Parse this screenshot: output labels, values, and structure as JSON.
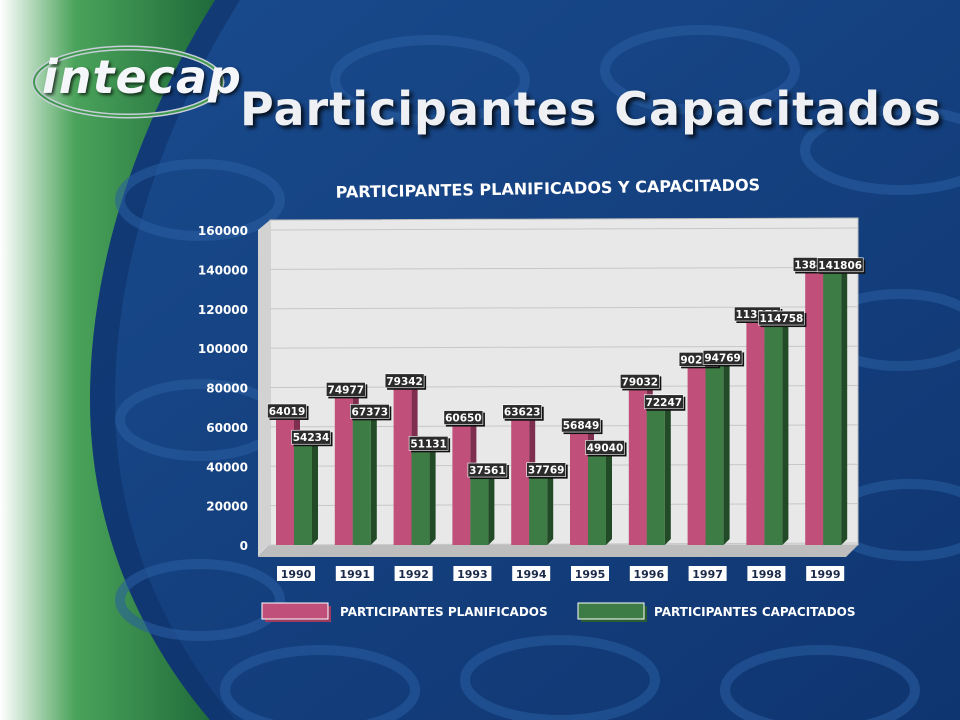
{
  "logo": {
    "text": "intecap"
  },
  "page": {
    "title": "Participantes Capacitados"
  },
  "colors": {
    "planned": "#c0507a",
    "trained": "#3d7d45",
    "background": "#14407e",
    "plot_bg": "#e7e7e7"
  },
  "chart_data": {
    "type": "bar",
    "title": "PARTICIPANTES PLANIFICADOS Y CAPACITADOS",
    "xlabel": "",
    "ylabel": "",
    "categories": [
      "1990",
      "1991",
      "1992",
      "1993",
      "1994",
      "1995",
      "1996",
      "1997",
      "1998",
      "1999"
    ],
    "series": [
      {
        "name": "PARTICIPANTES PLANIFICADOS",
        "values": [
          64019,
          74977,
          79342,
          60650,
          63623,
          56849,
          79032,
          90253,
          113273,
          138444
        ]
      },
      {
        "name": "PARTICIPANTES CAPACITADOS",
        "values": [
          54234,
          67373,
          51131,
          37561,
          37769,
          49040,
          72247,
          94769,
          114758,
          141806
        ]
      }
    ],
    "ylim": [
      0,
      160000
    ],
    "yticks": [
      "0",
      "20000",
      "40000",
      "60000",
      "80000",
      "100000",
      "120000",
      "140000",
      "160000"
    ],
    "grid": true,
    "legend_position": "bottom"
  }
}
